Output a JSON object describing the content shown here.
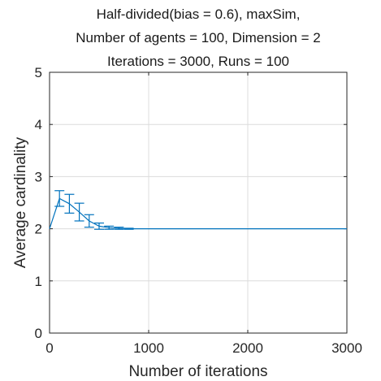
{
  "chart_data": {
    "type": "line",
    "title": [
      "Half-divided(bias = 0.6), maxSim,",
      "Number of agents = 100, Dimension = 2",
      "Iterations = 3000, Runs = 100"
    ],
    "xlabel": "Number of iterations",
    "ylabel": "Average cardinality",
    "xlim": [
      0,
      3000
    ],
    "ylim": [
      0,
      5
    ],
    "xticks": [
      0,
      1000,
      2000,
      3000
    ],
    "xtick_labels": [
      "0",
      "1000",
      "2000",
      "3000"
    ],
    "yticks": [
      0,
      1,
      2,
      3,
      4,
      5
    ],
    "ytick_labels": [
      "0",
      "1",
      "2",
      "3",
      "4",
      "5"
    ],
    "grid": true,
    "series_color": "#0072BD",
    "series": [
      {
        "x": [
          0,
          100,
          200,
          300,
          400,
          500,
          600,
          700,
          800,
          900,
          1000,
          3000
        ],
        "y": [
          2.0,
          2.58,
          2.48,
          2.32,
          2.15,
          2.05,
          2.02,
          2.01,
          2.0,
          2.0,
          2.0,
          2.0
        ],
        "error": [
          0,
          0.15,
          0.18,
          0.17,
          0.12,
          0.06,
          0.03,
          0.02,
          0.01,
          0,
          0,
          0
        ]
      }
    ]
  }
}
